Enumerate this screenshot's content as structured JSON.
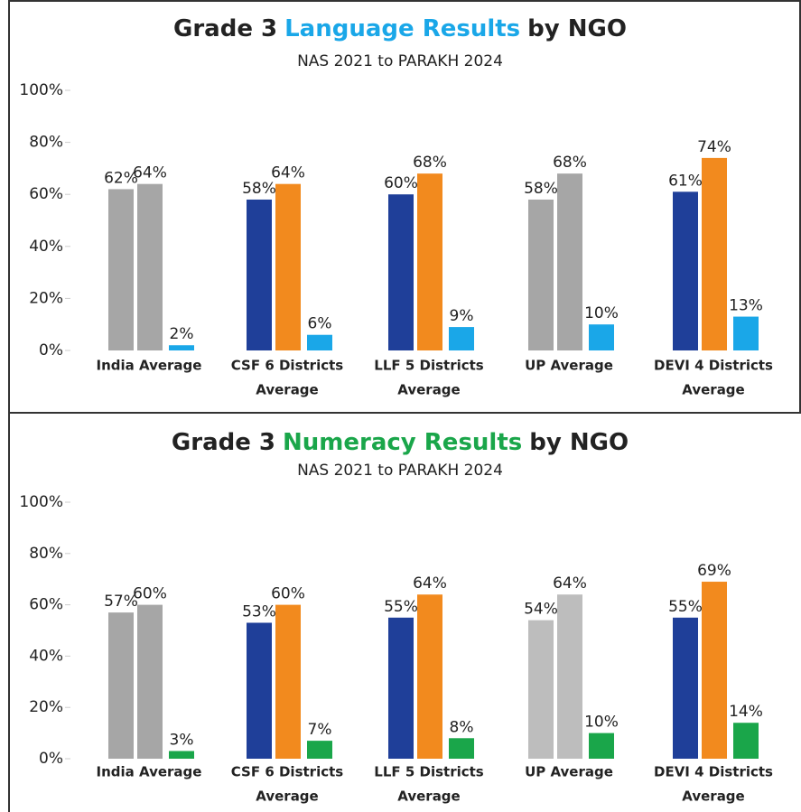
{
  "chart_data": [
    {
      "type": "bar",
      "title": [
        "Grade 3",
        "Language Results",
        "by NGO"
      ],
      "title_highlight_color": "#1aa7e8",
      "subtitle": "NAS 2021 to PARAKH 2024",
      "categories": [
        [
          "India Average"
        ],
        [
          "CSF 6 Districts",
          "Average"
        ],
        [
          "LLF 5 Districts",
          "Average"
        ],
        [
          "UP Average"
        ],
        [
          "DEVI 4 Districts",
          "Average"
        ]
      ],
      "series": [
        {
          "values": [
            62,
            58,
            60,
            58,
            61
          ],
          "value_labels": [
            "62%",
            "58%",
            "60%",
            "58%",
            "61%"
          ],
          "colors": [
            "#a6a6a6",
            "#1f3f99",
            "#1f3f99",
            "#a6a6a6",
            "#1f3f99"
          ]
        },
        {
          "values": [
            64,
            64,
            68,
            68,
            74
          ],
          "value_labels": [
            "64%",
            "64%",
            "68%",
            "68%",
            "74%"
          ],
          "colors": [
            "#a6a6a6",
            "#f28a1e",
            "#f28a1e",
            "#a6a6a6",
            "#f28a1e"
          ]
        },
        {
          "values": [
            2,
            6,
            9,
            10,
            13
          ],
          "value_labels": [
            "2%",
            "6%",
            "9%",
            "10%",
            "13%"
          ],
          "colors": [
            "#1aa7e8",
            "#1aa7e8",
            "#1aa7e8",
            "#1aa7e8",
            "#1aa7e8"
          ]
        }
      ],
      "ylim": [
        0,
        100
      ],
      "yticks": [
        {
          "value": 0,
          "label": "0%"
        },
        {
          "value": 20,
          "label": "20%"
        },
        {
          "value": 40,
          "label": "40%"
        },
        {
          "value": 60,
          "label": "60%"
        },
        {
          "value": 80,
          "label": "80%"
        },
        {
          "value": 100,
          "label": "100%"
        }
      ],
      "grid": false
    },
    {
      "type": "bar",
      "title": [
        "Grade 3",
        "Numeracy Results",
        "by NGO"
      ],
      "title_highlight_color": "#1aa64a",
      "subtitle": "NAS 2021 to PARAKH 2024",
      "categories": [
        [
          "India Average"
        ],
        [
          "CSF 6 Districts",
          "Average"
        ],
        [
          "LLF 5 Districts",
          "Average"
        ],
        [
          "UP Average"
        ],
        [
          "DEVI 4 Districts",
          "Average"
        ]
      ],
      "series": [
        {
          "values": [
            57,
            53,
            55,
            54,
            55
          ],
          "value_labels": [
            "57%",
            "53%",
            "55%",
            "54%",
            "55%"
          ],
          "colors": [
            "#a6a6a6",
            "#1f3f99",
            "#1f3f99",
            "#bdbdbd",
            "#1f3f99"
          ]
        },
        {
          "values": [
            60,
            60,
            64,
            64,
            69
          ],
          "value_labels": [
            "60%",
            "60%",
            "64%",
            "64%",
            "69%"
          ],
          "colors": [
            "#a6a6a6",
            "#f28a1e",
            "#f28a1e",
            "#bdbdbd",
            "#f28a1e"
          ]
        },
        {
          "values": [
            3,
            7,
            8,
            10,
            14
          ],
          "value_labels": [
            "3%",
            "7%",
            "8%",
            "10%",
            "14%"
          ],
          "colors": [
            "#1aa64a",
            "#1aa64a",
            "#1aa64a",
            "#1aa64a",
            "#1aa64a"
          ]
        }
      ],
      "ylim": [
        0,
        100
      ],
      "yticks": [
        {
          "value": 0,
          "label": "0%"
        },
        {
          "value": 20,
          "label": "20%"
        },
        {
          "value": 40,
          "label": "40%"
        },
        {
          "value": 60,
          "label": "60%"
        },
        {
          "value": 80,
          "label": "80%"
        },
        {
          "value": 100,
          "label": "100%"
        }
      ],
      "grid": false
    }
  ]
}
